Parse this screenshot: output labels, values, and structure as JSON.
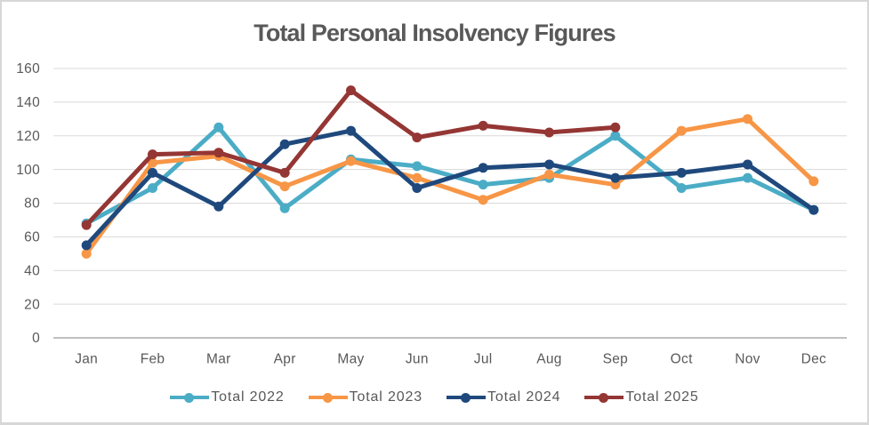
{
  "chart_data": {
    "type": "line",
    "title": "Total Personal Insolvency Figures",
    "categories": [
      "Jan",
      "Feb",
      "Mar",
      "Apr",
      "May",
      "Jun",
      "Jul",
      "Aug",
      "Sep",
      "Oct",
      "Nov",
      "Dec"
    ],
    "series": [
      {
        "name": "Total 2022",
        "color": "#4BACC6",
        "values": [
          68,
          89,
          125,
          77,
          106,
          102,
          91,
          95,
          120,
          89,
          95,
          76
        ]
      },
      {
        "name": "Total 2023",
        "color": "#F79646",
        "values": [
          50,
          104,
          108,
          90,
          105,
          95,
          82,
          97,
          91,
          123,
          130,
          93
        ]
      },
      {
        "name": "Total 2024",
        "color": "#1F497D",
        "values": [
          55,
          98,
          78,
          115,
          123,
          89,
          101,
          103,
          95,
          98,
          103,
          76
        ]
      },
      {
        "name": "Total 2025",
        "color": "#943634",
        "values": [
          67,
          109,
          110,
          98,
          147,
          119,
          126,
          122,
          125,
          null,
          null,
          null
        ]
      }
    ],
    "xlabel": "",
    "ylabel": "",
    "y_axis": {
      "min": 0,
      "max": 160,
      "step": 20
    },
    "grid": true,
    "legend_position": "bottom",
    "colors": {
      "text": "#595959",
      "gridline": "#D9D9D9",
      "axis_line": "#BFBFBF",
      "border": "#D7D7D7",
      "background": "#FFFFFF"
    }
  }
}
